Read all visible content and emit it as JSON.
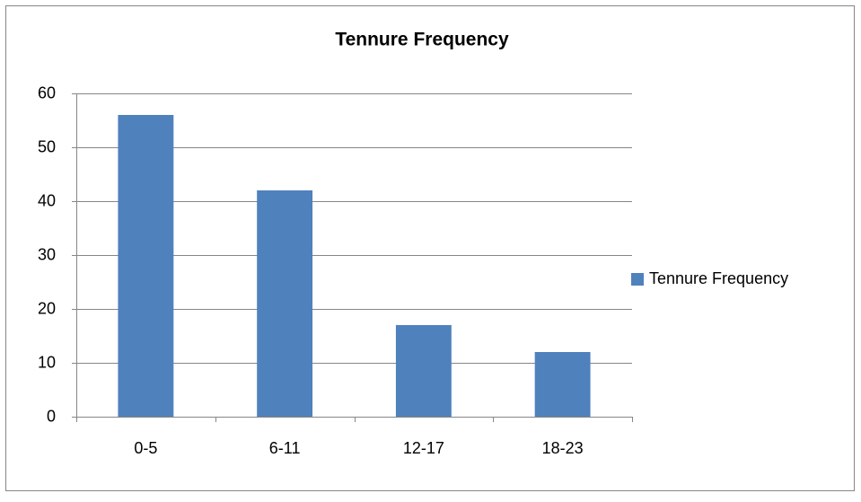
{
  "chart_data": {
    "type": "bar",
    "title": "Tennure Frequency",
    "categories": [
      "0-5",
      "6-11",
      "12-17",
      "18-23"
    ],
    "series": [
      {
        "name": "Tennure Frequency",
        "color": "#4f81bd",
        "values": [
          56,
          42,
          17,
          12
        ]
      }
    ],
    "ylim": [
      0,
      60
    ],
    "yticks": [
      0,
      10,
      20,
      30,
      40,
      50,
      60
    ],
    "grid": true,
    "legend": "right"
  }
}
